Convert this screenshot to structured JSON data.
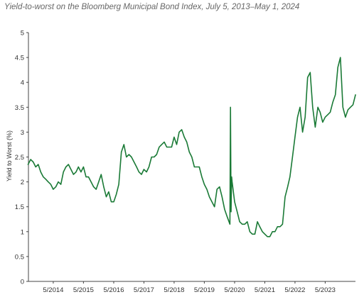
{
  "title": "Yield-to-worst on the Bloomberg Municipal Bond Index, July 5, 2013–May 1, 2024",
  "chart_data": {
    "type": "line",
    "title": "Yield-to-worst on the Bloomberg Municipal Bond Index, July 5, 2013–May 1, 2024",
    "ylabel": "Yield to Worst (%)",
    "xlabel": "",
    "ylim": [
      0,
      5
    ],
    "yticks": [
      "0",
      "0.5",
      "1",
      "1.5",
      "2",
      "2.5",
      "3",
      "3.5",
      "4",
      "4.5",
      "5"
    ],
    "xticks": [
      "5/2014",
      "5/2015",
      "5/2016",
      "5/2017",
      "5/2018",
      "5/2019",
      "5/2020",
      "5/2021",
      "5/2022",
      "5/2023"
    ],
    "grid": false,
    "line_color": "#1a7a36",
    "series": [
      {
        "name": "",
        "x": [
          "2013-07",
          "2013-08",
          "2013-09",
          "2013-10",
          "2013-11",
          "2013-12",
          "2014-01",
          "2014-02",
          "2014-03",
          "2014-04",
          "2014-05",
          "2014-06",
          "2014-07",
          "2014-08",
          "2014-09",
          "2014-10",
          "2014-11",
          "2014-12",
          "2015-01",
          "2015-02",
          "2015-03",
          "2015-04",
          "2015-05",
          "2015-06",
          "2015-07",
          "2015-08",
          "2015-09",
          "2015-10",
          "2015-11",
          "2015-12",
          "2016-01",
          "2016-02",
          "2016-03",
          "2016-04",
          "2016-05",
          "2016-06",
          "2016-07",
          "2016-08",
          "2016-09",
          "2016-10",
          "2016-11",
          "2016-12",
          "2017-01",
          "2017-02",
          "2017-03",
          "2017-04",
          "2017-05",
          "2017-06",
          "2017-07",
          "2017-08",
          "2017-09",
          "2017-10",
          "2017-11",
          "2017-12",
          "2018-01",
          "2018-02",
          "2018-03",
          "2018-04",
          "2018-05",
          "2018-06",
          "2018-07",
          "2018-08",
          "2018-09",
          "2018-10",
          "2018-11",
          "2018-12",
          "2019-01",
          "2019-02",
          "2019-03",
          "2019-04",
          "2019-05",
          "2019-06",
          "2019-07",
          "2019-08",
          "2019-09",
          "2019-10",
          "2019-11",
          "2019-12",
          "2020-01",
          "2020-02",
          "2020-03-05",
          "2020-03-12",
          "2020-03-19",
          "2020-03-26",
          "2020-04",
          "2020-05",
          "2020-06",
          "2020-07",
          "2020-08",
          "2020-09",
          "2020-10",
          "2020-11",
          "2020-12",
          "2021-01",
          "2021-02",
          "2021-03",
          "2021-04",
          "2021-05",
          "2021-06",
          "2021-07",
          "2021-08",
          "2021-09",
          "2021-10",
          "2021-11",
          "2021-12",
          "2022-01",
          "2022-02",
          "2022-03",
          "2022-04",
          "2022-05",
          "2022-06",
          "2022-07",
          "2022-08",
          "2022-09",
          "2022-10",
          "2022-11",
          "2022-12",
          "2023-01",
          "2023-02",
          "2023-03",
          "2023-04",
          "2023-05",
          "2023-06",
          "2023-07",
          "2023-08",
          "2023-09",
          "2023-10",
          "2023-11",
          "2023-12",
          "2024-01",
          "2024-02",
          "2024-03",
          "2024-04",
          "2024-05"
        ],
        "y": [
          2.35,
          2.45,
          2.4,
          2.3,
          2.35,
          2.2,
          2.1,
          2.05,
          2.0,
          1.95,
          1.85,
          1.9,
          2.0,
          1.95,
          2.2,
          2.3,
          2.35,
          2.25,
          2.15,
          2.2,
          2.3,
          2.2,
          2.3,
          2.1,
          2.1,
          2.0,
          1.9,
          1.85,
          2.0,
          2.15,
          1.9,
          1.7,
          1.8,
          1.6,
          1.6,
          1.75,
          1.95,
          2.6,
          2.75,
          2.5,
          2.55,
          2.5,
          2.4,
          2.3,
          2.2,
          2.15,
          2.25,
          2.2,
          2.3,
          2.5,
          2.5,
          2.55,
          2.7,
          2.75,
          2.8,
          2.7,
          2.7,
          2.7,
          2.9,
          2.75,
          3.0,
          3.05,
          2.9,
          2.8,
          2.6,
          2.5,
          2.3,
          2.3,
          2.3,
          2.1,
          1.95,
          1.85,
          1.7,
          1.6,
          1.5,
          1.85,
          1.9,
          1.7,
          1.45,
          1.3,
          1.15,
          3.5,
          1.4,
          2.1,
          2.0,
          1.6,
          1.4,
          1.2,
          1.15,
          1.15,
          1.2,
          1.0,
          0.95,
          0.95,
          1.2,
          1.1,
          1.0,
          0.95,
          0.9,
          0.9,
          1.0,
          1.0,
          1.1,
          1.1,
          1.15,
          1.7,
          1.9,
          2.1,
          2.5,
          2.9,
          3.3,
          3.5,
          3.0,
          3.3,
          4.1,
          4.2,
          3.5,
          3.1,
          3.5,
          3.4,
          3.2,
          3.3,
          3.35,
          3.4,
          3.6,
          3.75,
          4.3,
          4.5,
          3.5,
          3.3,
          3.45,
          3.5,
          3.55,
          3.75
        ]
      }
    ]
  }
}
